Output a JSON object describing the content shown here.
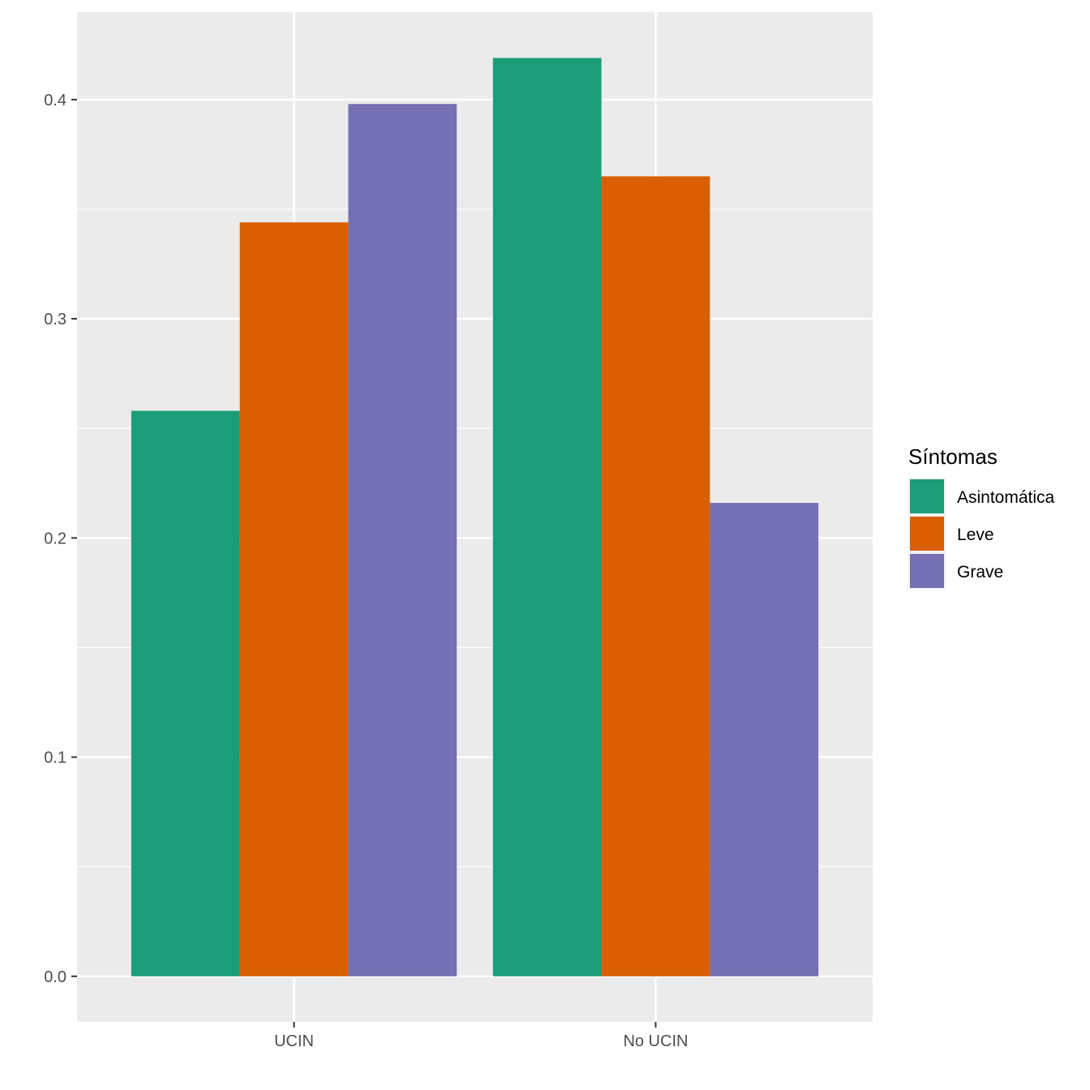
{
  "chart_data": {
    "type": "bar",
    "categories": [
      "UCIN",
      "No UCIN"
    ],
    "series": [
      {
        "name": "Asintomática",
        "color": "#1B9E77",
        "values": [
          0.258,
          0.419
        ]
      },
      {
        "name": "Leve",
        "color": "#D95F02",
        "values": [
          0.344,
          0.365
        ]
      },
      {
        "name": "Grave",
        "color": "#7570B3",
        "values": [
          0.398,
          0.216
        ]
      }
    ],
    "title": "",
    "xlabel": "",
    "ylabel": "",
    "ylim": [
      -0.0208,
      0.4399
    ],
    "yticks": [
      0.0,
      0.1,
      0.2,
      0.3,
      0.4
    ],
    "ytick_labels": [
      "0.0",
      "0.1",
      "0.2",
      "0.3",
      "0.4"
    ],
    "legend": {
      "title": "Síntomas",
      "position": "right"
    },
    "grid": true,
    "panel_background": "#EBEBEB"
  }
}
